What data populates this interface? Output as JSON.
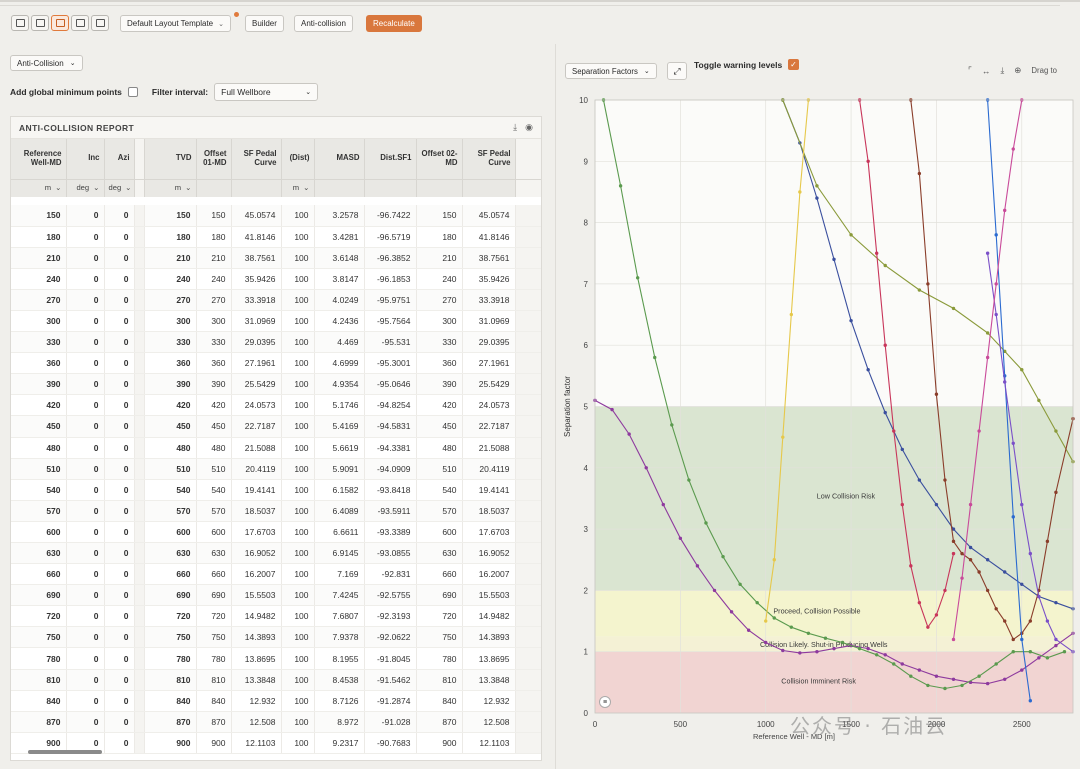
{
  "toolbar": {
    "layouts": [
      "single-panel",
      "stacked-rows",
      "side-by-side-columns",
      "split-grid",
      "quad-grid"
    ],
    "template_label": "Default Layout Template",
    "builder_label": "Builder",
    "anticollision_label": "Anti-collision",
    "recalculate_label": "Recalculate",
    "accent": "#d9773d"
  },
  "left": {
    "mode_select": "Anti-Collision",
    "global_min_label": "Add global minimum points",
    "filter_label": "Filter interval:",
    "filter_value": "Full Wellbore",
    "report_title": "ANTI-COLLISION REPORT"
  },
  "table": {
    "headers": [
      "Reference Well-MD",
      "Inc",
      "Azi",
      "",
      "TVD",
      "Offset 01-MD",
      "SF Pedal Curve",
      "(Dist)",
      "MASD",
      "Dist.SF1",
      "Offset 02-MD",
      "SF Pedal Curve",
      ""
    ],
    "units": [
      "m",
      "deg",
      "deg",
      "",
      "m",
      "",
      "",
      "m",
      "",
      "",
      "",
      "",
      ""
    ],
    "rows": [
      [
        "150",
        "0",
        "0",
        "150",
        "150",
        "45.0574",
        "100",
        "3.2578",
        "-96.7422",
        "150",
        "45.0574"
      ],
      [
        "180",
        "0",
        "0",
        "180",
        "180",
        "41.8146",
        "100",
        "3.4281",
        "-96.5719",
        "180",
        "41.8146"
      ],
      [
        "210",
        "0",
        "0",
        "210",
        "210",
        "38.7561",
        "100",
        "3.6148",
        "-96.3852",
        "210",
        "38.7561"
      ],
      [
        "240",
        "0",
        "0",
        "240",
        "240",
        "35.9426",
        "100",
        "3.8147",
        "-96.1853",
        "240",
        "35.9426"
      ],
      [
        "270",
        "0",
        "0",
        "270",
        "270",
        "33.3918",
        "100",
        "4.0249",
        "-95.9751",
        "270",
        "33.3918"
      ],
      [
        "300",
        "0",
        "0",
        "300",
        "300",
        "31.0969",
        "100",
        "4.2436",
        "-95.7564",
        "300",
        "31.0969"
      ],
      [
        "330",
        "0",
        "0",
        "330",
        "330",
        "29.0395",
        "100",
        "4.469",
        "-95.531",
        "330",
        "29.0395"
      ],
      [
        "360",
        "0",
        "0",
        "360",
        "360",
        "27.1961",
        "100",
        "4.6999",
        "-95.3001",
        "360",
        "27.1961"
      ],
      [
        "390",
        "0",
        "0",
        "390",
        "390",
        "25.5429",
        "100",
        "4.9354",
        "-95.0646",
        "390",
        "25.5429"
      ],
      [
        "420",
        "0",
        "0",
        "420",
        "420",
        "24.0573",
        "100",
        "5.1746",
        "-94.8254",
        "420",
        "24.0573"
      ],
      [
        "450",
        "0",
        "0",
        "450",
        "450",
        "22.7187",
        "100",
        "5.4169",
        "-94.5831",
        "450",
        "22.7187"
      ],
      [
        "480",
        "0",
        "0",
        "480",
        "480",
        "21.5088",
        "100",
        "5.6619",
        "-94.3381",
        "480",
        "21.5088"
      ],
      [
        "510",
        "0",
        "0",
        "510",
        "510",
        "20.4119",
        "100",
        "5.9091",
        "-94.0909",
        "510",
        "20.4119"
      ],
      [
        "540",
        "0",
        "0",
        "540",
        "540",
        "19.4141",
        "100",
        "6.1582",
        "-93.8418",
        "540",
        "19.4141"
      ],
      [
        "570",
        "0",
        "0",
        "570",
        "570",
        "18.5037",
        "100",
        "6.4089",
        "-93.5911",
        "570",
        "18.5037"
      ],
      [
        "600",
        "0",
        "0",
        "600",
        "600",
        "17.6703",
        "100",
        "6.6611",
        "-93.3389",
        "600",
        "17.6703"
      ],
      [
        "630",
        "0",
        "0",
        "630",
        "630",
        "16.9052",
        "100",
        "6.9145",
        "-93.0855",
        "630",
        "16.9052"
      ],
      [
        "660",
        "0",
        "0",
        "660",
        "660",
        "16.2007",
        "100",
        "7.169",
        "-92.831",
        "660",
        "16.2007"
      ],
      [
        "690",
        "0",
        "0",
        "690",
        "690",
        "15.5503",
        "100",
        "7.4245",
        "-92.5755",
        "690",
        "15.5503"
      ],
      [
        "720",
        "0",
        "0",
        "720",
        "720",
        "14.9482",
        "100",
        "7.6807",
        "-92.3193",
        "720",
        "14.9482"
      ],
      [
        "750",
        "0",
        "0",
        "750",
        "750",
        "14.3893",
        "100",
        "7.9378",
        "-92.0622",
        "750",
        "14.3893"
      ],
      [
        "780",
        "0",
        "0",
        "780",
        "780",
        "13.8695",
        "100",
        "8.1955",
        "-91.8045",
        "780",
        "13.8695"
      ],
      [
        "810",
        "0",
        "0",
        "810",
        "810",
        "13.3848",
        "100",
        "8.4538",
        "-91.5462",
        "810",
        "13.3848"
      ],
      [
        "840",
        "0",
        "0",
        "840",
        "840",
        "12.932",
        "100",
        "8.7126",
        "-91.2874",
        "840",
        "12.932"
      ],
      [
        "870",
        "0",
        "0",
        "870",
        "870",
        "12.508",
        "100",
        "8.972",
        "-91.028",
        "870",
        "12.508"
      ],
      [
        "900",
        "0",
        "0",
        "900",
        "900",
        "12.1103",
        "100",
        "9.2317",
        "-90.7683",
        "900",
        "12.1103"
      ]
    ]
  },
  "right": {
    "chart_select": "Separation Factors",
    "toggle_label": "Toggle warning levels",
    "toggle_checked": true,
    "drag_label": "Drag to",
    "watermark": "公众号 · 石油云"
  },
  "chart_data": {
    "type": "line",
    "ylabel": "Separation factor",
    "xlabel": "Reference Well - MD [m]",
    "xlim": [
      0,
      2800
    ],
    "ylim": [
      0,
      10
    ],
    "x_ticks": [
      "0",
      "500",
      "1000",
      "1500",
      "2000",
      "2500"
    ],
    "y_ticks": [
      "0",
      "1",
      "2",
      "3",
      "4",
      "5",
      "6",
      "7",
      "8",
      "9",
      "10"
    ],
    "zones": [
      {
        "label": "Collision Imminent Risk",
        "from": 0,
        "to": 1,
        "color": "#f0cfcd"
      },
      {
        "label": "Collision Likely. Shut-in Producing Wells",
        "from": 1,
        "to": 1.25,
        "color": "#f3efd0"
      },
      {
        "label": "Proceed, Collision Possible",
        "from": 1.25,
        "to": 2,
        "color": "#f3f3c9"
      },
      {
        "label": "Low Collision Risk",
        "from": 2,
        "to": 5,
        "color": "#d6e2cc"
      }
    ],
    "series": [
      {
        "color": "#8e3a9e",
        "x": [
          0,
          100,
          200,
          300,
          400,
          500,
          600,
          700,
          800,
          900,
          1000,
          1100,
          1200,
          1300,
          1400,
          1500,
          1600,
          1700,
          1800,
          1900,
          2000,
          2100,
          2200,
          2300,
          2400,
          2500,
          2600,
          2700,
          2800
        ],
        "y": [
          5.1,
          4.95,
          4.55,
          4.0,
          3.4,
          2.85,
          2.4,
          2.0,
          1.65,
          1.35,
          1.15,
          1.02,
          0.98,
          1.0,
          1.05,
          1.1,
          1.05,
          0.95,
          0.8,
          0.7,
          0.6,
          0.55,
          0.5,
          0.48,
          0.55,
          0.7,
          0.9,
          1.1,
          1.3
        ]
      },
      {
        "color": "#5a9a4e",
        "x": [
          50,
          150,
          250,
          350,
          450,
          550,
          650,
          750,
          850,
          950,
          1050,
          1150,
          1250,
          1350,
          1450,
          1550,
          1650,
          1750,
          1850,
          1950,
          2050,
          2150,
          2250,
          2350,
          2450,
          2550,
          2650,
          2750
        ],
        "y": [
          10,
          8.6,
          7.1,
          5.8,
          4.7,
          3.8,
          3.1,
          2.55,
          2.1,
          1.8,
          1.55,
          1.4,
          1.3,
          1.22,
          1.15,
          1.05,
          0.95,
          0.8,
          0.6,
          0.45,
          0.4,
          0.45,
          0.6,
          0.8,
          1.0,
          1.0,
          0.9,
          1.0
        ]
      },
      {
        "color": "#3a4f9e",
        "x": [
          1100,
          1200,
          1300,
          1400,
          1500,
          1600,
          1700,
          1800,
          1900,
          2000,
          2100,
          2200,
          2300,
          2400,
          2500,
          2600,
          2700,
          2800
        ],
        "y": [
          10,
          9.3,
          8.4,
          7.4,
          6.4,
          5.6,
          4.9,
          4.3,
          3.8,
          3.4,
          3.0,
          2.7,
          2.5,
          2.3,
          2.1,
          1.9,
          1.8,
          1.7
        ]
      },
      {
        "color": "#8a9a3a",
        "x": [
          1100,
          1300,
          1500,
          1700,
          1900,
          2100,
          2300,
          2400,
          2500,
          2600,
          2700,
          2800
        ],
        "y": [
          10,
          8.6,
          7.8,
          7.3,
          6.9,
          6.6,
          6.2,
          5.9,
          5.6,
          5.1,
          4.6,
          4.1
        ]
      },
      {
        "color": "#c8355a",
        "x": [
          1550,
          1600,
          1650,
          1700,
          1750,
          1800,
          1850,
          1900,
          1950,
          2000,
          2050,
          2100
        ],
        "y": [
          10,
          9.0,
          7.5,
          6.0,
          4.6,
          3.4,
          2.4,
          1.8,
          1.4,
          1.6,
          2.0,
          2.6
        ]
      },
      {
        "color": "#8a3d2a",
        "x": [
          1850,
          1900,
          1950,
          2000,
          2050,
          2100,
          2150,
          2200,
          2250,
          2300,
          2350,
          2400,
          2450,
          2500,
          2550,
          2600,
          2650,
          2700,
          2800
        ],
        "y": [
          10,
          8.8,
          7.0,
          5.2,
          3.8,
          2.8,
          2.6,
          2.5,
          2.3,
          2.0,
          1.7,
          1.5,
          1.2,
          1.3,
          1.5,
          2.0,
          2.8,
          3.6,
          4.8
        ]
      },
      {
        "color": "#2a6ad0",
        "x": [
          2300,
          2350,
          2400,
          2450,
          2500,
          2550
        ],
        "y": [
          10,
          7.8,
          5.5,
          3.2,
          1.2,
          0.2
        ]
      },
      {
        "color": "#e6c84a",
        "x": [
          1000,
          1050,
          1100,
          1150,
          1200,
          1250
        ],
        "y": [
          1.5,
          2.5,
          4.5,
          6.5,
          8.5,
          10
        ]
      },
      {
        "color": "#7a4fc8",
        "x": [
          2300,
          2350,
          2400,
          2450,
          2500,
          2550,
          2600,
          2650,
          2700,
          2800
        ],
        "y": [
          7.5,
          6.5,
          5.4,
          4.4,
          3.4,
          2.6,
          1.9,
          1.5,
          1.2,
          1.0
        ]
      },
      {
        "color": "#c94a9a",
        "x": [
          2100,
          2150,
          2200,
          2250,
          2300,
          2350,
          2400,
          2450,
          2500
        ],
        "y": [
          1.2,
          2.2,
          3.4,
          4.6,
          5.8,
          7.0,
          8.2,
          9.2,
          10
        ]
      }
    ]
  }
}
